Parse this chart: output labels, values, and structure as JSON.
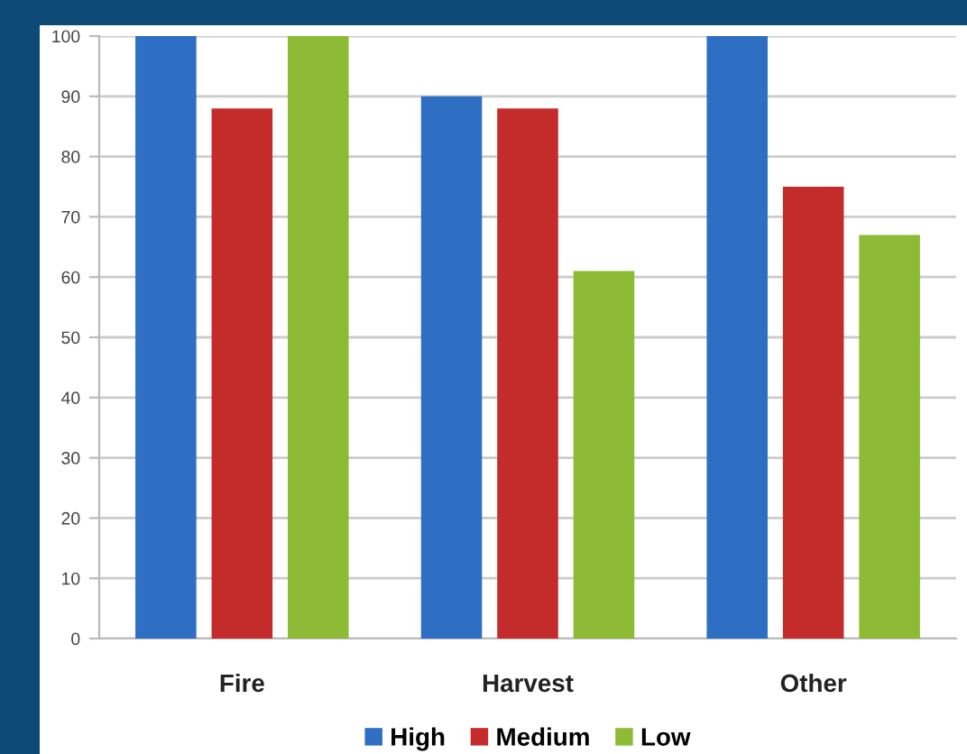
{
  "chart_data": {
    "type": "bar",
    "categories": [
      "Fire",
      "Harvest",
      "Other"
    ],
    "series": [
      {
        "name": "High",
        "color": "#2e6fc4",
        "values": [
          100,
          90,
          100
        ]
      },
      {
        "name": "Medium",
        "color": "#c42b2b",
        "values": [
          88,
          88,
          75
        ]
      },
      {
        "name": "Low",
        "color": "#8dbb35",
        "values": [
          100,
          61,
          67
        ]
      }
    ],
    "ylim": [
      0,
      100
    ],
    "yticks": [
      0,
      10,
      20,
      30,
      40,
      50,
      60,
      70,
      80,
      90,
      100
    ],
    "grid": "y",
    "legend": "bottom"
  }
}
